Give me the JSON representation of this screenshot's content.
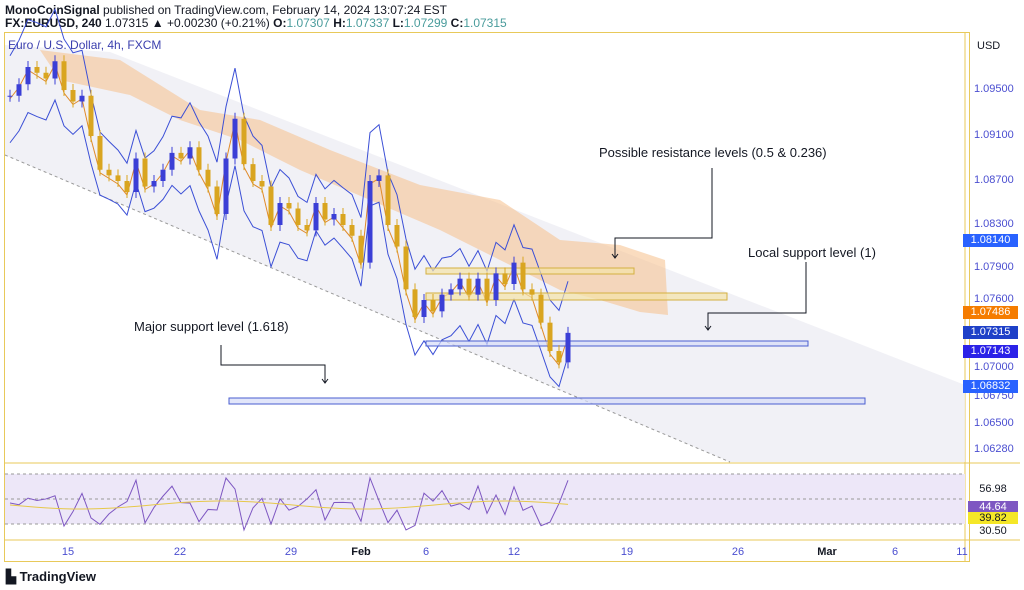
{
  "header": {
    "author": "MonoCoinSignal",
    "published": " published on TradingView.com, February 14, 2024 13:07:24 EST",
    "symbol": "FX:EURUSD, 240",
    "last": "1.07315",
    "change": "+0.00230 (+0.21%)",
    "o": "1.07307",
    "h": "1.07337",
    "l": "1.07299",
    "c": "1.07315"
  },
  "legend": "Euro / U.S. Dollar, 4h, FXCM",
  "currency": "USD",
  "price_axis": [
    "1.09500",
    "1.09100",
    "1.08700",
    "1.08300",
    "1.07900",
    "1.07600",
    "1.07000",
    "1.06750",
    "1.06500",
    "1.06280"
  ],
  "price_tags": [
    {
      "v": "1.08140",
      "color": "#2962ff"
    },
    {
      "v": "1.07486",
      "color": "#f57c00"
    },
    {
      "v": "1.07315",
      "color": "#1e40c8"
    },
    {
      "v": "1.07143",
      "color": "#2b22e8"
    },
    {
      "v": "1.06832",
      "color": "#2962ff"
    }
  ],
  "rsi_labels": [
    {
      "v": "56.98",
      "bg": "",
      "fg": "#131722"
    },
    {
      "v": "44.64",
      "bg": "#7e57c2",
      "fg": "#fff"
    },
    {
      "v": "39.82",
      "bg": "#f5e728",
      "fg": "#131722"
    },
    {
      "v": "30.50",
      "bg": "",
      "fg": "#131722"
    }
  ],
  "time_axis": [
    "15",
    "22",
    "29",
    "Feb",
    "6",
    "12",
    "19",
    "26",
    "Mar",
    "6",
    "11"
  ],
  "annotations": {
    "resistance": "Possible resistance levels (0.5 & 0.236)",
    "local_support": "Local support level (1)",
    "major_support": "Major support level (1.618)"
  },
  "brand": "TradingView",
  "colors": {
    "up": "#3b3fd6",
    "down": "#d9a520",
    "cloud": "#f5c08a",
    "bands": "#3b4fd6"
  },
  "chart_data": {
    "type": "candlestick",
    "symbol": "EURUSD",
    "timeframe": "4h",
    "closes": [
      1.0945,
      1.0955,
      1.097,
      1.0965,
      1.096,
      1.0975,
      1.095,
      1.094,
      1.0945,
      1.091,
      1.088,
      1.0875,
      1.087,
      1.086,
      1.089,
      1.0865,
      1.087,
      1.088,
      1.0895,
      1.089,
      1.09,
      1.088,
      1.0865,
      1.084,
      1.089,
      1.0925,
      1.0885,
      1.087,
      1.0865,
      1.083,
      1.085,
      1.0845,
      1.083,
      1.0825,
      1.085,
      1.0835,
      1.084,
      1.083,
      1.082,
      1.0795,
      1.087,
      1.0875,
      1.083,
      1.081,
      1.077,
      1.0745,
      1.076,
      1.075,
      1.0765,
      1.077,
      1.078,
      1.0765,
      1.078,
      1.076,
      1.0785,
      1.0775,
      1.0795,
      1.077,
      1.0765,
      1.074,
      1.0715,
      1.0705,
      1.0731
    ],
    "levels": {
      "resistance": [
        1.0789,
        1.0766
      ],
      "local_support": 1.0719,
      "major_support": 1.0675
    }
  }
}
